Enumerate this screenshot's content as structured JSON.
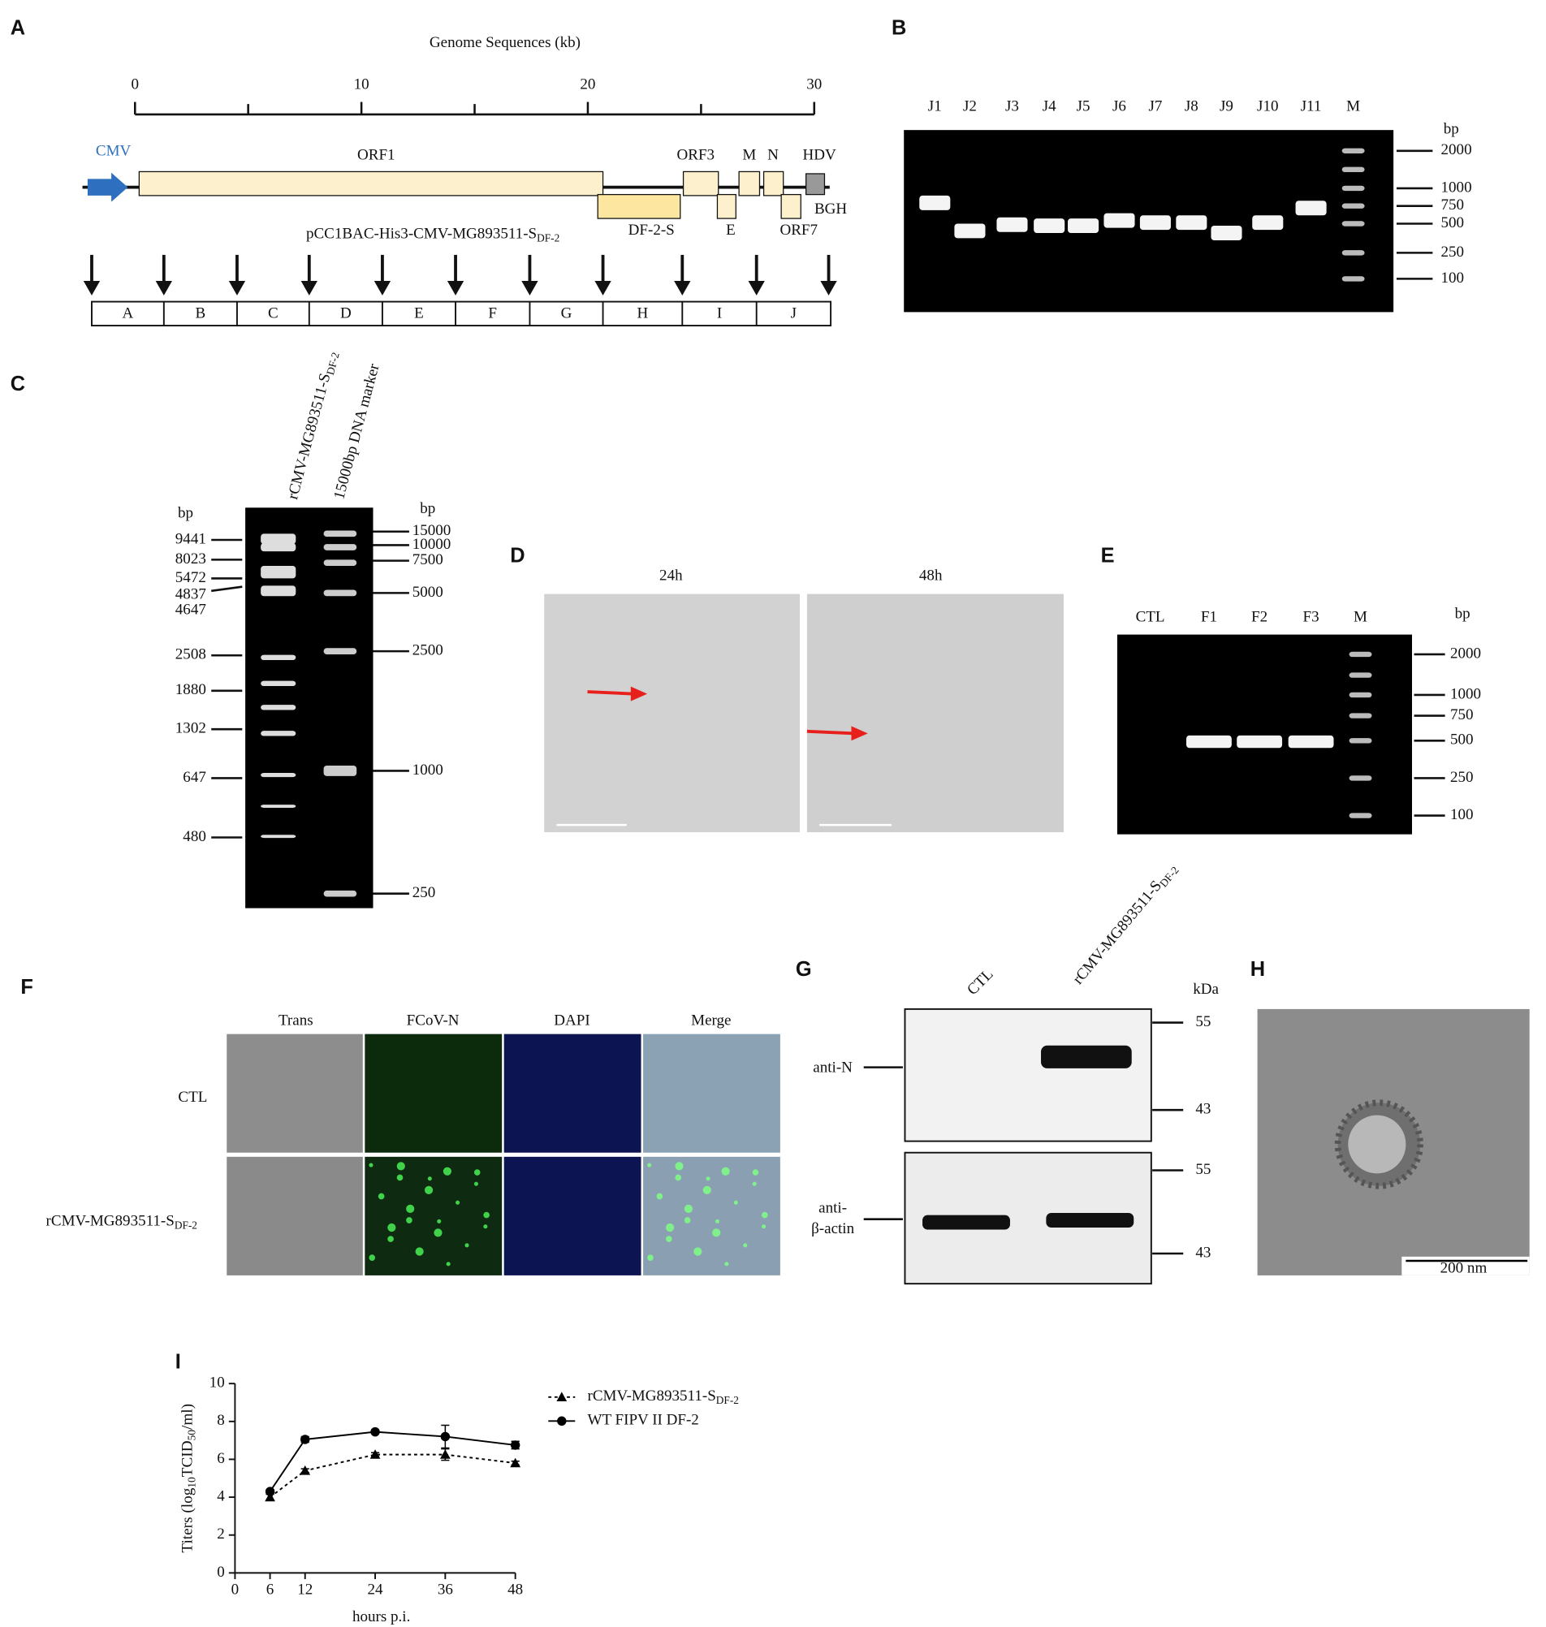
{
  "panel_labels": [
    "A",
    "B",
    "C",
    "D",
    "E",
    "F",
    "G",
    "H",
    "I"
  ],
  "panel_a": {
    "title": "Genome Sequences (kb)",
    "xlim": [
      0,
      30
    ],
    "xticks": [
      0,
      10,
      20,
      30
    ],
    "features": {
      "cmv": "CMV",
      "orf1": "ORF1",
      "orf3": "ORF3",
      "m": "M",
      "n": "N",
      "hdv": "HDV",
      "bgh": "BGH",
      "df2s": "DF-2-S",
      "e": "E",
      "orf7": "ORF7"
    },
    "construct": [
      "pCC1BAC-His3-CMV-MG893511-S",
      "DF-2"
    ],
    "fragments": [
      "A",
      "B",
      "C",
      "D",
      "E",
      "F",
      "G",
      "H",
      "I",
      "J"
    ]
  },
  "panel_b": {
    "lanes": [
      "J1",
      "J2",
      "J3",
      "J4",
      "J5",
      "J6",
      "J7",
      "J8",
      "J9",
      "J10",
      "J11",
      "M"
    ],
    "unit": "bp",
    "markers": [
      2000,
      1000,
      750,
      500,
      250,
      100
    ]
  },
  "panel_c": {
    "lanes": [
      [
        "rCMV-MG893511-S",
        "DF-2"
      ],
      [
        "15000bp DNA marker"
      ]
    ],
    "unit_left": "bp",
    "unit_right": "bp",
    "fragments_left": [
      9441,
      8023,
      5472,
      4837,
      4647,
      2508,
      1880,
      1302,
      647,
      480
    ],
    "markers_right": [
      15000,
      10000,
      7500,
      5000,
      2500,
      1000,
      250
    ]
  },
  "panel_d": {
    "times": [
      "24h",
      "48h"
    ]
  },
  "panel_e": {
    "lanes": [
      "CTL",
      "F1",
      "F2",
      "F3",
      "M"
    ],
    "unit": "bp",
    "markers": [
      2000,
      1000,
      750,
      500,
      250,
      100
    ]
  },
  "panel_f": {
    "columns": [
      "Trans",
      "FCoV-N",
      "DAPI",
      "Merge"
    ],
    "rows": [
      [
        "CTL"
      ],
      [
        "rCMV-MG893511-S",
        "DF-2"
      ]
    ]
  },
  "panel_g": {
    "lanes": [
      [
        "CTL"
      ],
      [
        "rCMV-MG893511-S",
        "DF-2"
      ]
    ],
    "unit": "kDa",
    "markers_top": [
      55,
      43
    ],
    "markers_bottom": [
      55,
      43
    ],
    "antibodies": {
      "top": "anti-N",
      "bottom_1": "anti-",
      "bottom_2": "β-actin"
    }
  },
  "panel_h": {
    "scale_bar": "200 nm"
  },
  "chart_data": {
    "type": "line",
    "x_label": "hours p.i.",
    "y_label": [
      "Titers (log",
      "10",
      "TCID",
      "50",
      "/ml)"
    ],
    "xlim": [
      0,
      48
    ],
    "ylim": [
      0,
      10
    ],
    "xticks": [
      0,
      6,
      12,
      24,
      36,
      48
    ],
    "yticks": [
      0,
      2,
      4,
      6,
      8,
      10
    ],
    "x": [
      6,
      12,
      24,
      36,
      48
    ],
    "series": [
      {
        "name": [
          "rCMV-MG893511-S",
          "DF-2"
        ],
        "color": "#000000",
        "marker": "triangle",
        "dashed": true,
        "values": [
          4.0,
          5.4,
          6.25,
          6.25,
          5.8
        ],
        "errors": [
          0.15,
          0.1,
          0.1,
          0.3,
          0.1
        ]
      },
      {
        "name": [
          "WT FIPV II DF-2"
        ],
        "color": "#000000",
        "marker": "circle",
        "dashed": false,
        "values": [
          4.3,
          7.05,
          7.45,
          7.2,
          6.75
        ],
        "errors": [
          0.1,
          0.15,
          0.05,
          0.6,
          0.2
        ]
      }
    ]
  }
}
